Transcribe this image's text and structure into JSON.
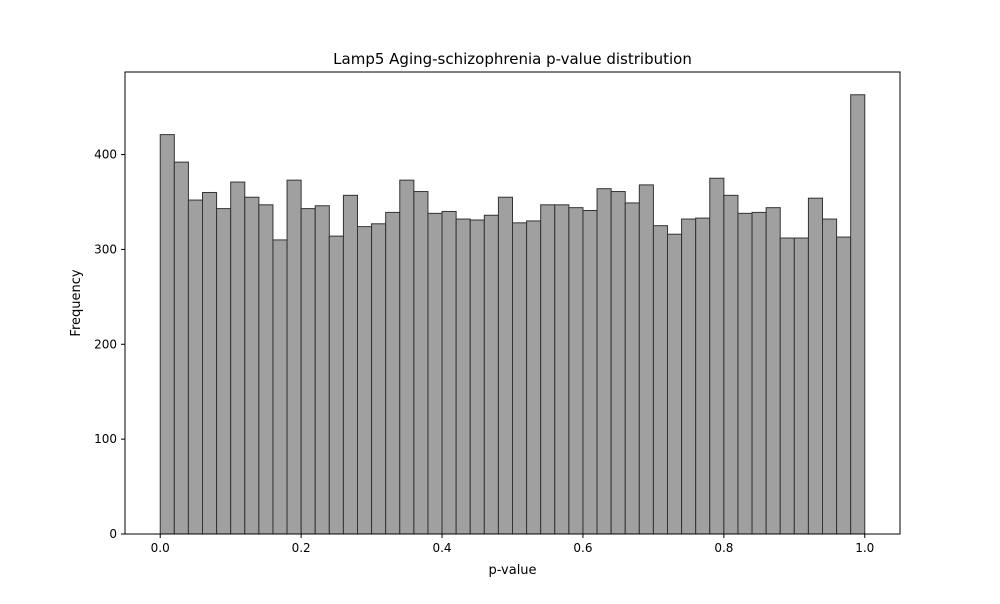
{
  "chart_data": {
    "type": "bar",
    "title": "Lamp5 Aging-schizophrenia p-value distribution",
    "xlabel": "p-value",
    "ylabel": "Frequency",
    "bin_edges_start": 0.0,
    "bin_width": 0.02,
    "values": [
      421,
      392,
      352,
      360,
      343,
      371,
      355,
      347,
      310,
      373,
      343,
      346,
      314,
      357,
      324,
      327,
      339,
      373,
      361,
      338,
      340,
      332,
      331,
      336,
      355,
      328,
      330,
      347,
      347,
      344,
      341,
      364,
      361,
      349,
      368,
      325,
      316,
      332,
      333,
      375,
      357,
      338,
      339,
      344,
      312,
      312,
      354,
      332,
      313,
      463
    ],
    "xlim": [
      -0.05,
      1.05
    ],
    "ylim": [
      0,
      487
    ],
    "x_ticks": [
      0.0,
      0.2,
      0.4,
      0.6,
      0.8,
      1.0
    ],
    "x_tick_labels": [
      "0.0",
      "0.2",
      "0.4",
      "0.6",
      "0.8",
      "1.0"
    ],
    "y_ticks": [
      0,
      100,
      200,
      300,
      400
    ],
    "y_tick_labels": [
      "0",
      "100",
      "200",
      "300",
      "400"
    ],
    "bar_color": "#a0a0a0",
    "edge_color": "#333333",
    "grid": false
  }
}
